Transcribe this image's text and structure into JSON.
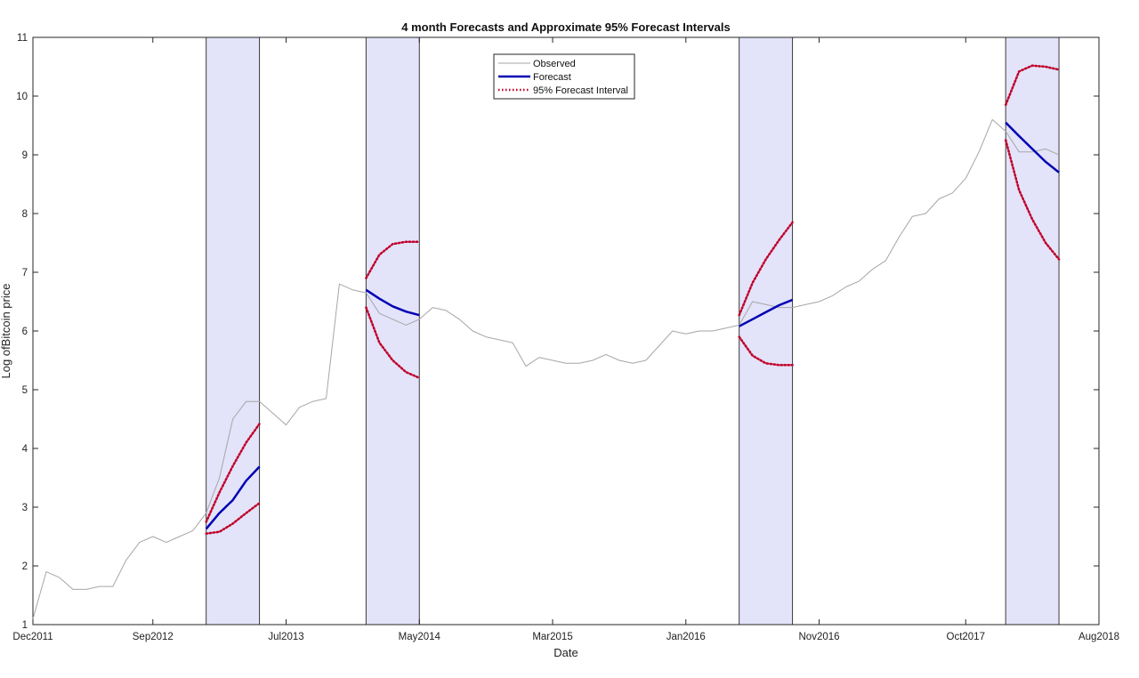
{
  "chart_data": {
    "type": "line",
    "title": "4 month Forecasts and Approximate 95% Forecast Intervals",
    "xlabel": "Date",
    "ylabel": "Log ofBitcoin price",
    "x_ticks": [
      {
        "date": "2011-12",
        "label": "Dec2011"
      },
      {
        "date": "2012-09",
        "label": "Sep2012"
      },
      {
        "date": "2013-07",
        "label": "Jul2013"
      },
      {
        "date": "2014-05",
        "label": "May2014"
      },
      {
        "date": "2015-03",
        "label": "Mar2015"
      },
      {
        "date": "2016-01",
        "label": "Jan2016"
      },
      {
        "date": "2016-11",
        "label": "Nov2016"
      },
      {
        "date": "2017-10",
        "label": "Oct2017"
      },
      {
        "date": "2018-08",
        "label": "Aug2018"
      }
    ],
    "xlim": [
      "2011-12",
      "2018-08"
    ],
    "ylim": [
      1,
      11
    ],
    "y_ticks": [
      1,
      2,
      3,
      4,
      5,
      6,
      7,
      8,
      9,
      10,
      11
    ],
    "grid": false,
    "legend_position": "top-center",
    "colors": {
      "observed": "#a6a6a6",
      "forecast": "#0000b4",
      "interval": "#c00028",
      "shade_fill": "#e3e3fa"
    },
    "forecast_windows": [
      {
        "start": "2013-01",
        "end": "2013-05"
      },
      {
        "start": "2014-01",
        "end": "2014-05"
      },
      {
        "start": "2016-05",
        "end": "2016-09"
      },
      {
        "start": "2018-01",
        "end": "2018-05"
      }
    ],
    "series": [
      {
        "name": "Observed",
        "x": [
          "2011-12",
          "2012-01",
          "2012-02",
          "2012-03",
          "2012-04",
          "2012-05",
          "2012-06",
          "2012-07",
          "2012-08",
          "2012-09",
          "2012-10",
          "2012-11",
          "2012-12",
          "2013-01",
          "2013-02",
          "2013-03",
          "2013-04",
          "2013-05",
          "2013-06",
          "2013-07",
          "2013-08",
          "2013-09",
          "2013-10",
          "2013-11",
          "2013-12",
          "2014-01",
          "2014-02",
          "2014-03",
          "2014-04",
          "2014-05",
          "2014-06",
          "2014-07",
          "2014-08",
          "2014-09",
          "2014-10",
          "2014-11",
          "2014-12",
          "2015-01",
          "2015-02",
          "2015-03",
          "2015-04",
          "2015-05",
          "2015-06",
          "2015-07",
          "2015-08",
          "2015-09",
          "2015-10",
          "2015-11",
          "2015-12",
          "2016-01",
          "2016-02",
          "2016-03",
          "2016-04",
          "2016-05",
          "2016-06",
          "2016-07",
          "2016-08",
          "2016-09",
          "2016-10",
          "2016-11",
          "2016-12",
          "2017-01",
          "2017-02",
          "2017-03",
          "2017-04",
          "2017-05",
          "2017-06",
          "2017-07",
          "2017-08",
          "2017-09",
          "2017-10",
          "2017-11",
          "2017-12",
          "2018-01",
          "2018-02",
          "2018-03",
          "2018-04",
          "2018-05"
        ],
        "values": [
          1.1,
          1.9,
          1.8,
          1.6,
          1.6,
          1.65,
          1.65,
          2.1,
          2.4,
          2.5,
          2.4,
          2.5,
          2.6,
          2.9,
          3.5,
          4.5,
          4.8,
          4.8,
          4.6,
          4.4,
          4.7,
          4.8,
          4.85,
          6.8,
          6.7,
          6.65,
          6.3,
          6.2,
          6.1,
          6.2,
          6.4,
          6.35,
          6.2,
          6.0,
          5.9,
          5.85,
          5.8,
          5.4,
          5.55,
          5.5,
          5.45,
          5.45,
          5.5,
          5.6,
          5.5,
          5.45,
          5.5,
          5.75,
          6.0,
          5.95,
          6.0,
          6.0,
          6.05,
          6.1,
          6.5,
          6.45,
          6.4,
          6.4,
          6.45,
          6.5,
          6.6,
          6.75,
          6.85,
          7.05,
          7.2,
          7.6,
          7.95,
          8.0,
          8.25,
          8.35,
          8.6,
          9.05,
          9.6,
          9.4,
          9.05,
          9.05,
          9.1,
          9.0
        ]
      },
      {
        "name": "Forecast",
        "segments": [
          {
            "x": [
              "2013-01",
              "2013-02",
              "2013-03",
              "2013-04",
              "2013-05"
            ],
            "values": [
              2.63,
              2.9,
              3.12,
              3.45,
              3.69
            ]
          },
          {
            "x": [
              "2014-01",
              "2014-02",
              "2014-03",
              "2014-04",
              "2014-05"
            ],
            "values": [
              6.7,
              6.55,
              6.42,
              6.33,
              6.27
            ]
          },
          {
            "x": [
              "2016-05",
              "2016-06",
              "2016-07",
              "2016-08",
              "2016-09"
            ],
            "values": [
              6.08,
              6.2,
              6.32,
              6.44,
              6.53
            ]
          },
          {
            "x": [
              "2018-01",
              "2018-02",
              "2018-03",
              "2018-04",
              "2018-05"
            ],
            "values": [
              9.55,
              9.32,
              9.1,
              8.88,
              8.7
            ]
          }
        ]
      },
      {
        "name": "95% Forecast Interval",
        "segments": [
          {
            "x": [
              "2013-01",
              "2013-02",
              "2013-03",
              "2013-04",
              "2013-05"
            ],
            "upper": [
              2.75,
              3.25,
              3.7,
              4.1,
              4.42
            ],
            "lower": [
              2.55,
              2.58,
              2.72,
              2.9,
              3.07
            ]
          },
          {
            "x": [
              "2014-01",
              "2014-02",
              "2014-03",
              "2014-04",
              "2014-05"
            ],
            "upper": [
              6.9,
              7.3,
              7.48,
              7.52,
              7.52
            ],
            "lower": [
              6.4,
              5.8,
              5.5,
              5.3,
              5.2
            ]
          },
          {
            "x": [
              "2016-05",
              "2016-06",
              "2016-07",
              "2016-08",
              "2016-09"
            ],
            "upper": [
              6.27,
              6.82,
              7.22,
              7.55,
              7.85
            ],
            "lower": [
              5.9,
              5.58,
              5.45,
              5.42,
              5.42
            ]
          },
          {
            "x": [
              "2018-01",
              "2018-02",
              "2018-03",
              "2018-04",
              "2018-05"
            ],
            "upper": [
              9.85,
              10.42,
              10.52,
              10.5,
              10.45
            ],
            "lower": [
              9.25,
              8.4,
              7.9,
              7.5,
              7.22
            ]
          }
        ]
      }
    ]
  }
}
